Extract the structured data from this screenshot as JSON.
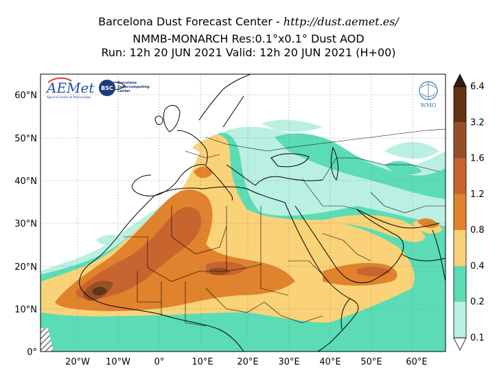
{
  "header": {
    "center_name": "Barcelona Dust Forecast Center - ",
    "url": "http://dust.aemet.es/",
    "model_line": "NMMB-MONARCH   Res:0.1°x0.1°   Dust AOD",
    "run_line": "Run: 12h 20 JUN 2021   Valid: 12h 20 JUN 2021 (H+00)"
  },
  "axes": {
    "lat_labels": [
      "60°N",
      "50°N",
      "40°N",
      "30°N",
      "20°N",
      "10°N",
      "0°"
    ],
    "lon_labels": [
      "20°W",
      "10°W",
      "0°",
      "10°E",
      "20°E",
      "30°E",
      "40°E",
      "50°E",
      "60°E"
    ]
  },
  "colorbar": {
    "levels": [
      "0.1",
      "0.2",
      "0.4",
      "0.8",
      "1.2",
      "1.6",
      "3.2",
      "6.4"
    ],
    "colors": [
      "#b9f0e1",
      "#5bdcb4",
      "#fad278",
      "#e1822d",
      "#c8642d",
      "#965028",
      "#643214",
      "#321e0f"
    ]
  },
  "logos": {
    "aemet": "AEMet",
    "aemet_sub": "Agencia Estatal de Meteorología",
    "bsc": "BSC",
    "bsc_text_1": "Barcelona",
    "bsc_text_2": "Supercomputing",
    "bsc_text_3": "Center",
    "wmo": "WMO"
  }
}
